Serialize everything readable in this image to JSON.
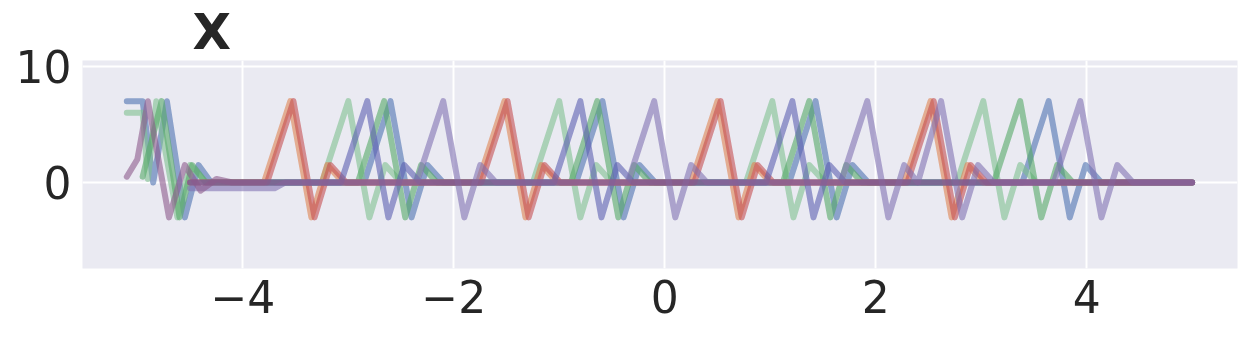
{
  "chart_data": {
    "type": "line",
    "title": "X",
    "xlim": [
      -5.52,
      5.43
    ],
    "ylim": [
      -7.4,
      10.5
    ],
    "xticks": [
      {
        "value": -4,
        "label": "−4"
      },
      {
        "value": -2,
        "label": "−2"
      },
      0,
      2,
      4
    ],
    "yticks": [
      0,
      10
    ],
    "grid": true,
    "line_style": "solid",
    "marker": "none",
    "series": [
      {
        "color": "#4c72b0",
        "x": [
          -5.1,
          -4.95,
          -4.85,
          -4.72,
          -4.55,
          -4.42,
          -4.3,
          -2.85,
          -2.6,
          -2.4,
          -2.25,
          -2.1,
          -0.84,
          -0.59,
          -0.39,
          -0.24,
          -0.09,
          1.18,
          1.43,
          1.63,
          1.78,
          1.93,
          3.39,
          3.64,
          3.84,
          3.99,
          4.14,
          5
        ],
        "values": [
          7,
          7,
          0,
          7,
          -3,
          1.5,
          0,
          0,
          7,
          -3,
          1.5,
          0,
          0,
          7,
          -3,
          1.5,
          0,
          0,
          7,
          -3,
          1.5,
          0,
          0,
          7,
          -3,
          1.5,
          0,
          0
        ]
      },
      {
        "color": "#7fc08f",
        "x": [
          -5.1,
          -4.95,
          -4.9,
          -4.82,
          -4.62,
          -4.5,
          -4.35,
          -3.25,
          -3.0,
          -2.8,
          -2.65,
          -2.5,
          -1.25,
          -1.0,
          -0.8,
          -0.65,
          -0.5,
          0.77,
          1.02,
          1.22,
          1.37,
          1.52,
          2.77,
          3.02,
          3.22,
          3.37,
          3.52,
          5
        ],
        "values": [
          6,
          6,
          0.3,
          7,
          -3,
          1.5,
          0,
          0,
          7,
          -3,
          1.5,
          0,
          0,
          7,
          -3,
          1.5,
          0,
          0,
          7,
          -3,
          1.5,
          0,
          0,
          7,
          -3,
          1.5,
          0,
          0
        ]
      },
      {
        "color": "#55a868",
        "x": [
          -4.95,
          -4.77,
          -4.6,
          -4.48,
          -4.35,
          -2.91,
          -2.66,
          -2.46,
          -2.31,
          -2.16,
          -0.89,
          -0.64,
          -0.44,
          -0.29,
          -0.14,
          1.12,
          1.37,
          1.57,
          1.72,
          1.87,
          3.12,
          3.37,
          3.57,
          3.72,
          3.87,
          5
        ],
        "values": [
          0.5,
          7,
          -3,
          1.5,
          0,
          0,
          7,
          -3,
          1.5,
          0,
          0,
          7,
          -3,
          1.5,
          0,
          0,
          7,
          -3,
          1.5,
          0,
          0,
          7,
          -3,
          1.5,
          0,
          0
        ]
      },
      {
        "color": "#dd8452",
        "x": [
          -4.5,
          -3.8,
          -3.55,
          -3.35,
          -3.2,
          -3.05,
          -1.77,
          -1.52,
          -1.32,
          -1.17,
          -1.02,
          0.25,
          0.5,
          0.7,
          0.85,
          1.0,
          2.27,
          2.52,
          2.72,
          2.87,
          3.02,
          5
        ],
        "values": [
          0,
          0,
          7,
          -3,
          1.5,
          0,
          0,
          7,
          -3,
          1.5,
          0,
          0,
          7,
          -3,
          1.5,
          0,
          0,
          7,
          -3,
          1.5,
          0,
          0
        ]
      },
      {
        "color": "#c44e52",
        "x": [
          -4.5,
          -3.77,
          -3.52,
          -3.32,
          -3.17,
          -3.02,
          -1.74,
          -1.49,
          -1.29,
          -1.14,
          -0.99,
          0.28,
          0.53,
          0.73,
          0.88,
          1.03,
          2.3,
          2.55,
          2.75,
          2.9,
          3.05,
          5
        ],
        "values": [
          0,
          0,
          7,
          -3,
          1.5,
          0,
          0,
          7,
          -3,
          1.5,
          0,
          0,
          7,
          -3,
          1.5,
          0,
          0,
          7,
          -3,
          1.5,
          0,
          0
        ]
      },
      {
        "color": "#5b5fb0",
        "x": [
          -4.5,
          -3.07,
          -2.82,
          -2.62,
          -2.47,
          -2.32,
          -1.05,
          -0.8,
          -0.6,
          -0.45,
          -0.3,
          0.96,
          1.21,
          1.41,
          1.56,
          1.71,
          5
        ],
        "values": [
          0,
          0,
          7,
          -3,
          1.5,
          0,
          0,
          7,
          -3,
          1.5,
          0,
          0,
          7,
          -3,
          1.5,
          0,
          0
        ]
      },
      {
        "color": "#8172b2",
        "x": [
          -4.5,
          -3.7,
          -3.6,
          -2.35,
          -2.1,
          -1.9,
          -1.75,
          -1.6,
          -0.35,
          -0.1,
          0.1,
          0.25,
          0.4,
          1.67,
          1.92,
          2.12,
          2.27,
          2.4,
          2.62,
          2.82,
          2.97,
          3.12,
          3.69,
          3.94,
          4.14,
          4.29,
          4.44,
          5
        ],
        "values": [
          -0.5,
          -0.5,
          0,
          0,
          7,
          -3,
          1.5,
          0,
          0,
          7,
          -3,
          1.5,
          0,
          0,
          7,
          -3,
          1.5,
          0,
          7,
          -3,
          1.5,
          0,
          0,
          7,
          -3,
          1.5,
          0,
          0
        ]
      },
      {
        "color": "#8c5a8c",
        "x": [
          -5.1,
          -5.0,
          -4.9,
          -4.7,
          -4.55,
          -4.4,
          -4.25,
          -4.1,
          5
        ],
        "values": [
          0.5,
          2,
          7,
          -3,
          1.5,
          -0.7,
          0.3,
          0,
          0
        ]
      }
    ]
  }
}
